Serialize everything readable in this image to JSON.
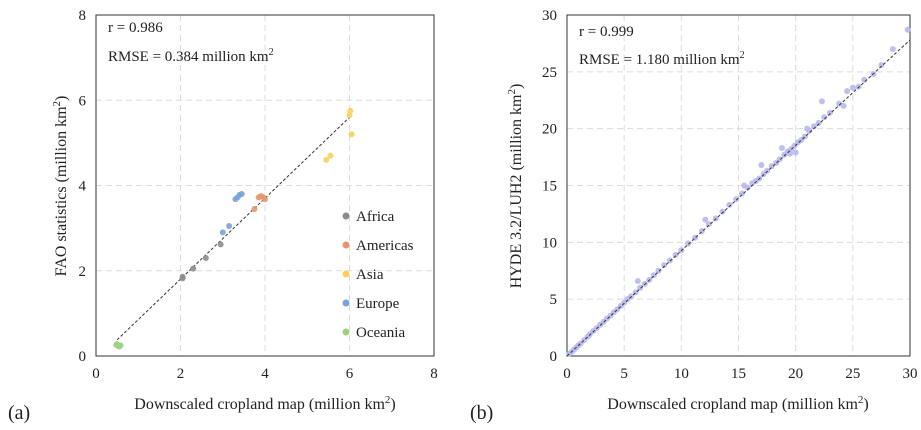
{
  "chart_data": [
    {
      "panel_label": "(a)",
      "type": "scatter",
      "xlabel": "Downscaled cropland map (million km",
      "xlabel_sup": "2",
      "xlabel_end": ")",
      "ylabel": "FAO statistics (million km",
      "ylabel_sup": "2",
      "ylabel_end": ")",
      "xlim": [
        0,
        8
      ],
      "ylim": [
        0,
        8
      ],
      "xticks": [
        0,
        2,
        4,
        6,
        8
      ],
      "yticks": [
        0,
        2,
        4,
        6,
        8
      ],
      "grid": true,
      "stat_r": "r = 0.986",
      "stat_rmse": "RMSE = 0.384 million km",
      "stat_rmse_sup": "2",
      "fit_line": [
        [
          0.5,
          0.38
        ],
        [
          6.0,
          5.6
        ]
      ],
      "legend_position": "bottom-right",
      "series": [
        {
          "name": "Africa",
          "color": "#8c8c8c",
          "points": [
            [
              2.05,
              1.86
            ],
            [
              2.3,
              2.05
            ],
            [
              2.6,
              2.3
            ],
            [
              2.95,
              2.62
            ],
            [
              2.05,
              1.82
            ]
          ]
        },
        {
          "name": "Americas",
          "color": "#e8956a",
          "points": [
            [
              3.75,
              3.45
            ],
            [
              3.85,
              3.72
            ],
            [
              3.9,
              3.75
            ],
            [
              3.95,
              3.73
            ],
            [
              4.0,
              3.68
            ]
          ]
        },
        {
          "name": "Asia",
          "color": "#f7d35a",
          "points": [
            [
              5.45,
              4.6
            ],
            [
              5.55,
              4.7
            ],
            [
              6.0,
              5.65
            ],
            [
              6.02,
              5.75
            ],
            [
              6.05,
              5.2
            ]
          ]
        },
        {
          "name": "Europe",
          "color": "#7aa3d6",
          "points": [
            [
              3.0,
              2.9
            ],
            [
              3.15,
              3.05
            ],
            [
              3.3,
              3.68
            ],
            [
              3.35,
              3.72
            ],
            [
              3.4,
              3.78
            ],
            [
              3.45,
              3.8
            ]
          ]
        },
        {
          "name": "Oceania",
          "color": "#9dd17f",
          "points": [
            [
              0.5,
              0.28
            ],
            [
              0.52,
              0.24
            ],
            [
              0.55,
              0.22
            ],
            [
              0.58,
              0.25
            ],
            [
              0.48,
              0.26
            ]
          ]
        }
      ]
    },
    {
      "panel_label": "(b)",
      "type": "scatter",
      "xlabel": "Downscaled cropland map (million km",
      "xlabel_sup": "2",
      "xlabel_end": ")",
      "ylabel": "HYDE 3.2/LUH2 (million km",
      "ylabel_sup": "2",
      "ylabel_end": ")",
      "xlim": [
        0,
        30
      ],
      "ylim": [
        0,
        30
      ],
      "xticks": [
        0,
        5,
        10,
        15,
        20,
        25,
        30
      ],
      "yticks": [
        0,
        5,
        10,
        15,
        20,
        25,
        30
      ],
      "grid": true,
      "stat_r": "r = 0.999",
      "stat_rmse": "RMSE = 1.180 million km",
      "stat_rmse_sup": "2",
      "fit_line": [
        [
          0,
          0
        ],
        [
          30,
          27.8
        ]
      ],
      "series": [
        {
          "color": "#b8b8f0",
          "points": [
            [
              0.2,
              0.2
            ],
            [
              0.4,
              0.35
            ],
            [
              0.6,
              0.55
            ],
            [
              0.8,
              0.75
            ],
            [
              1.0,
              0.95
            ],
            [
              1.2,
              1.1
            ],
            [
              1.5,
              1.4
            ],
            [
              1.8,
              1.7
            ],
            [
              2.0,
              1.9
            ],
            [
              2.3,
              2.2
            ],
            [
              2.6,
              2.45
            ],
            [
              2.9,
              2.75
            ],
            [
              3.2,
              3.0
            ],
            [
              3.5,
              3.3
            ],
            [
              3.8,
              3.55
            ],
            [
              4.1,
              3.85
            ],
            [
              4.4,
              4.1
            ],
            [
              4.7,
              4.4
            ],
            [
              5.0,
              4.7
            ],
            [
              5.3,
              5.0
            ],
            [
              5.6,
              5.25
            ],
            [
              6.0,
              5.6
            ],
            [
              6.4,
              6.0
            ],
            [
              6.8,
              6.35
            ],
            [
              7.2,
              6.7
            ],
            [
              7.6,
              7.1
            ],
            [
              8.0,
              7.5
            ],
            [
              8.5,
              8.0
            ],
            [
              9.0,
              8.4
            ],
            [
              9.5,
              8.9
            ],
            [
              10.0,
              9.3
            ],
            [
              10.6,
              9.9
            ],
            [
              11.2,
              10.4
            ],
            [
              11.8,
              11.0
            ],
            [
              12.4,
              11.6
            ],
            [
              13.0,
              12.1
            ],
            [
              13.6,
              12.7
            ],
            [
              14.2,
              13.3
            ],
            [
              14.8,
              13.8
            ],
            [
              15.3,
              14.3
            ],
            [
              15.8,
              14.8
            ],
            [
              16.2,
              15.2
            ],
            [
              16.5,
              15.4
            ],
            [
              16.8,
              15.6
            ],
            [
              17.2,
              16.0
            ],
            [
              17.5,
              16.3
            ],
            [
              17.9,
              16.7
            ],
            [
              18.3,
              17.0
            ],
            [
              18.6,
              17.3
            ],
            [
              19.0,
              17.7
            ],
            [
              19.3,
              18.0
            ],
            [
              19.6,
              18.2
            ],
            [
              19.9,
              18.5
            ],
            [
              20.2,
              18.8
            ],
            [
              20.5,
              19.0
            ],
            [
              20.8,
              19.3
            ],
            [
              21.2,
              19.8
            ],
            [
              21.6,
              20.2
            ],
            [
              22.0,
              20.5
            ],
            [
              22.5,
              21.0
            ],
            [
              23.0,
              21.4
            ],
            [
              23.8,
              22.2
            ],
            [
              24.5,
              23.3
            ],
            [
              25.0,
              23.6
            ],
            [
              26.0,
              24.3
            ],
            [
              26.8,
              24.8
            ],
            [
              27.5,
              25.6
            ],
            [
              28.5,
              27.0
            ],
            [
              29.8,
              28.7
            ],
            [
              6.2,
              6.6
            ],
            [
              12.1,
              12.0
            ],
            [
              15.5,
              15.0
            ],
            [
              17.0,
              16.8
            ],
            [
              18.8,
              18.3
            ],
            [
              19.5,
              17.8
            ],
            [
              20.0,
              17.9
            ],
            [
              21.0,
              20.0
            ],
            [
              22.3,
              22.4
            ],
            [
              24.2,
              22.0
            ],
            [
              25.5,
              23.7
            ]
          ]
        }
      ]
    }
  ]
}
